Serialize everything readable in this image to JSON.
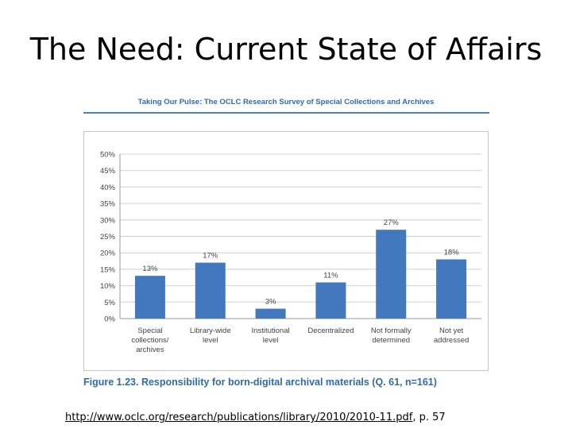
{
  "slide": {
    "title": "The Need: Current State of Affairs",
    "report_header": "Taking Our Pulse: The OCLC Research Survey of Special Collections and Archives",
    "figure_caption": "Figure 1.23. Responsibility for born-digital archival materials (Q. 61, n=161)",
    "source_url": "http://www.oclc.org/research/publications/library/2010/2010-11.pdf",
    "source_suffix": ", p. 57"
  },
  "chart_data": {
    "type": "bar",
    "categories": [
      [
        "Special",
        "collections/",
        "archives"
      ],
      [
        "Library-wide",
        "level"
      ],
      [
        "Institutional",
        "level"
      ],
      [
        "Decentralized"
      ],
      [
        "Not formally",
        "determined"
      ],
      [
        "Not yet",
        "addressed"
      ]
    ],
    "values": [
      13,
      17,
      3,
      11,
      27,
      18
    ],
    "data_labels": [
      "13%",
      "17%",
      "3%",
      "11%",
      "27%",
      "18%"
    ],
    "ylim": [
      0,
      50
    ],
    "yticks": [
      "0%",
      "5%",
      "10%",
      "15%",
      "20%",
      "25%",
      "30%",
      "35%",
      "40%",
      "45%",
      "50%"
    ],
    "bar_color": "#4178be",
    "grid": true,
    "legend": "none"
  }
}
